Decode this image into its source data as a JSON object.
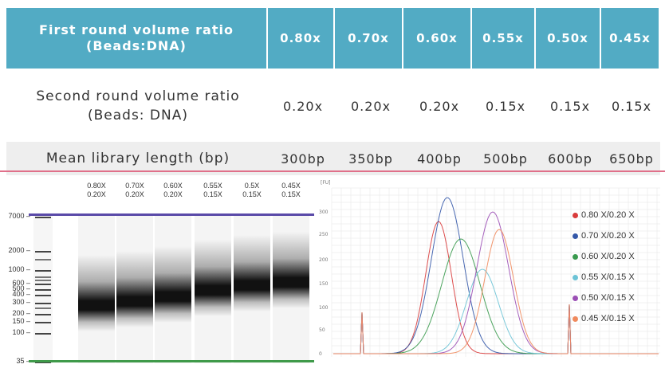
{
  "table": {
    "row1_label_line1": "First round volume ratio",
    "row1_label_line2": "(Beads:DNA)",
    "row2_label_line1": "Second round volume ratio",
    "row2_label_line2": "(Beads: DNA)",
    "row3_label": "Mean library length (bp)",
    "first_round": [
      "0.80x",
      "0.70x",
      "0.60x",
      "0.55x",
      "0.50x",
      "0.45x"
    ],
    "second_round": [
      "0.20x",
      "0.20x",
      "0.20x",
      "0.15x",
      "0.15x",
      "0.15x"
    ],
    "mean_length": [
      "300bp",
      "350bp",
      "400bp",
      "500bp",
      "600bp",
      "650bp"
    ]
  },
  "gel": {
    "lanes": [
      {
        "top": "0.80X",
        "bottom": "0.20X",
        "band_bp": 300
      },
      {
        "top": "0.70X",
        "bottom": "0.20X",
        "band_bp": 350
      },
      {
        "top": "0.60X",
        "bottom": "0.20X",
        "band_bp": 420
      },
      {
        "top": "0.55X",
        "bottom": "0.15X",
        "band_bp": 520
      },
      {
        "top": "0.5X",
        "bottom": "0.15X",
        "band_bp": 620
      },
      {
        "top": "0.45X",
        "bottom": "0.15X",
        "band_bp": 700
      }
    ],
    "size_markers": [
      "7000",
      "2000",
      "1000",
      "600",
      "500",
      "400",
      "300",
      "200",
      "150",
      "100",
      "35"
    ]
  },
  "chart_data": {
    "type": "line",
    "ylabel": "[FU]",
    "yticks": [
      "300",
      "250",
      "200",
      "150",
      "100",
      "50",
      "0"
    ],
    "series": [
      {
        "name": "0.80 X/0.20 X",
        "color": "#d93b3b"
      },
      {
        "name": "0.70 X/0.20 X",
        "color": "#3357a8"
      },
      {
        "name": "0.60 X/0.20 X",
        "color": "#3a9a4e"
      },
      {
        "name": "0.55 X/0.15 X",
        "color": "#6cc3d6"
      },
      {
        "name": "0.50 X/0.15 X",
        "color": "#9b4fb5"
      },
      {
        "name": "0.45 X/0.15 X",
        "color": "#f08a5d"
      }
    ]
  }
}
